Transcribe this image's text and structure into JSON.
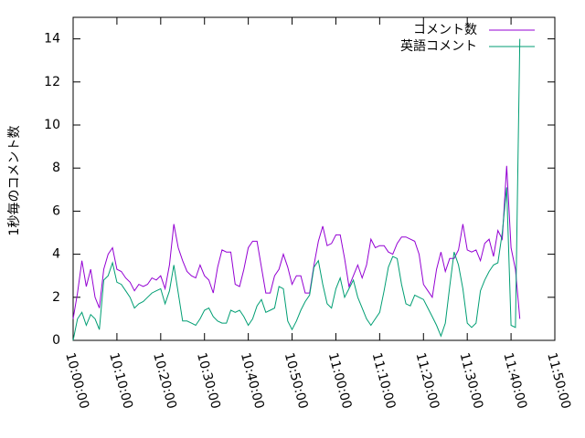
{
  "chart_data": {
    "type": "line",
    "ylabel": "1秒毎のコメント数",
    "x": [
      "10:00:00",
      "10:01:00",
      "10:02:00",
      "10:03:00",
      "10:04:00",
      "10:05:00",
      "10:06:00",
      "10:07:00",
      "10:08:00",
      "10:09:00",
      "10:10:00",
      "10:11:00",
      "10:12:00",
      "10:13:00",
      "10:14:00",
      "10:15:00",
      "10:16:00",
      "10:17:00",
      "10:18:00",
      "10:19:00",
      "10:20:00",
      "10:21:00",
      "10:22:00",
      "10:23:00",
      "10:24:00",
      "10:25:00",
      "10:26:00",
      "10:27:00",
      "10:28:00",
      "10:29:00",
      "10:30:00",
      "10:31:00",
      "10:32:00",
      "10:33:00",
      "10:34:00",
      "10:35:00",
      "10:36:00",
      "10:37:00",
      "10:38:00",
      "10:39:00",
      "10:40:00",
      "10:41:00",
      "10:42:00",
      "10:43:00",
      "10:44:00",
      "10:45:00",
      "10:46:00",
      "10:47:00",
      "10:48:00",
      "10:49:00",
      "10:50:00",
      "10:51:00",
      "10:52:00",
      "10:53:00",
      "10:54:00",
      "10:55:00",
      "10:56:00",
      "10:57:00",
      "10:58:00",
      "10:59:00",
      "11:00:00",
      "11:01:00",
      "11:02:00",
      "11:03:00",
      "11:04:00",
      "11:05:00",
      "11:06:00",
      "11:07:00",
      "11:08:00",
      "11:09:00",
      "11:10:00",
      "11:11:00",
      "11:12:00",
      "11:13:00",
      "11:14:00",
      "11:15:00",
      "11:16:00",
      "11:17:00",
      "11:18:00",
      "11:19:00",
      "11:20:00",
      "11:21:00",
      "11:22:00",
      "11:23:00",
      "11:24:00",
      "11:25:00",
      "11:26:00",
      "11:27:00",
      "11:28:00",
      "11:29:00",
      "11:30:00",
      "11:31:00",
      "11:32:00",
      "11:33:00",
      "11:34:00",
      "11:35:00",
      "11:36:00",
      "11:37:00",
      "11:38:00",
      "11:39:00",
      "11:40:00",
      "11:41:00",
      "11:42:00"
    ],
    "series": [
      {
        "name": "コメント数",
        "color": "#9400d3",
        "values": [
          1.0,
          2.2,
          3.7,
          2.5,
          3.3,
          2.0,
          1.5,
          3.3,
          4.0,
          4.3,
          3.3,
          3.2,
          2.9,
          2.7,
          2.3,
          2.6,
          2.5,
          2.6,
          2.9,
          2.8,
          3.0,
          2.4,
          3.5,
          5.4,
          4.3,
          3.7,
          3.2,
          3.0,
          2.9,
          3.5,
          3.0,
          2.8,
          2.2,
          3.4,
          4.2,
          4.1,
          4.1,
          2.6,
          2.5,
          3.3,
          4.3,
          4.6,
          4.6,
          3.4,
          2.2,
          2.2,
          3.0,
          3.3,
          4.0,
          3.4,
          2.6,
          3.0,
          3.0,
          2.2,
          2.2,
          3.5,
          4.6,
          5.3,
          4.4,
          4.5,
          4.9,
          4.9,
          3.8,
          2.5,
          3.0,
          3.5,
          2.9,
          3.5,
          4.7,
          4.3,
          4.4,
          4.4,
          4.1,
          4.0,
          4.5,
          4.8,
          4.8,
          4.7,
          4.6,
          4.0,
          2.6,
          2.3,
          2.0,
          3.3,
          4.1,
          3.2,
          3.8,
          3.8,
          4.2,
          5.4,
          4.2,
          4.1,
          4.2,
          3.7,
          4.5,
          4.7,
          3.9,
          5.1,
          4.7,
          8.1,
          4.3,
          3.3,
          1.0
        ]
      },
      {
        "name": "英語コメント",
        "color": "#009e73",
        "values": [
          0.0,
          1.0,
          1.3,
          0.7,
          1.2,
          1.0,
          0.5,
          2.8,
          3.0,
          3.6,
          2.7,
          2.6,
          2.3,
          2.0,
          1.5,
          1.7,
          1.8,
          2.0,
          2.2,
          2.3,
          2.4,
          1.7,
          2.3,
          3.5,
          2.2,
          0.9,
          0.9,
          0.8,
          0.7,
          1.0,
          1.4,
          1.5,
          1.1,
          0.9,
          0.8,
          0.8,
          1.4,
          1.3,
          1.4,
          1.1,
          0.7,
          1.0,
          1.6,
          1.9,
          1.3,
          1.4,
          1.5,
          2.5,
          2.4,
          0.9,
          0.5,
          0.9,
          1.4,
          1.8,
          2.1,
          3.4,
          3.7,
          2.6,
          1.7,
          1.5,
          2.4,
          2.9,
          2.0,
          2.4,
          2.8,
          2.0,
          1.5,
          1.0,
          0.7,
          1.0,
          1.3,
          2.3,
          3.4,
          3.9,
          3.8,
          2.6,
          1.7,
          1.6,
          2.1,
          2.0,
          1.9,
          1.5,
          1.1,
          0.7,
          0.2,
          0.8,
          2.5,
          4.1,
          3.5,
          2.4,
          0.8,
          0.6,
          0.8,
          2.3,
          2.8,
          3.2,
          3.5,
          3.6,
          5.0,
          7.1,
          0.7,
          0.6,
          14.0
        ]
      }
    ],
    "xlim": [
      "10:00:00",
      "11:50:00"
    ],
    "xticks": [
      "10:00:00",
      "10:10:00",
      "10:20:00",
      "10:30:00",
      "10:40:00",
      "10:50:00",
      "11:00:00",
      "11:10:00",
      "11:20:00",
      "11:30:00",
      "11:40:00",
      "11:50:00"
    ],
    "ylim": [
      0,
      15
    ],
    "yticks": [
      0,
      2,
      4,
      6,
      8,
      10,
      12,
      14
    ],
    "legend": "upper-right"
  }
}
